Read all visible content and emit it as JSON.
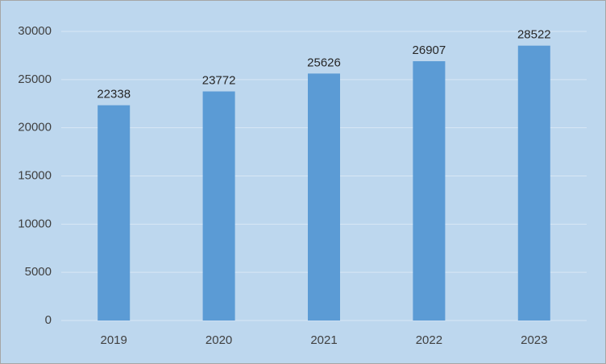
{
  "chart_data": {
    "type": "bar",
    "categories": [
      "2019",
      "2020",
      "2021",
      "2022",
      "2023"
    ],
    "values": [
      22338,
      23772,
      25626,
      26907,
      28522
    ],
    "color": "#5b9bd5",
    "ylim": [
      0,
      30000
    ],
    "yticks": [
      0,
      5000,
      10000,
      15000,
      20000,
      25000,
      30000
    ],
    "grid": true,
    "data_labels": true
  }
}
